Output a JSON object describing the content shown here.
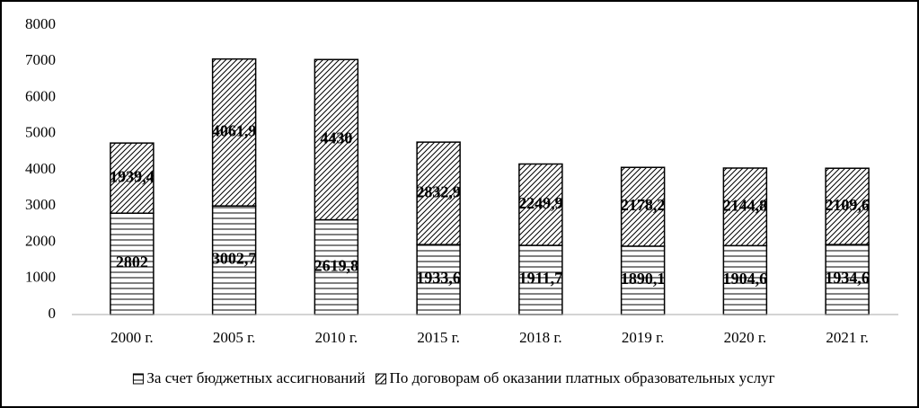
{
  "chart_data": {
    "type": "stacked-bar",
    "categories": [
      "2000 г.",
      "2005 г.",
      "2010 г.",
      "2015 г.",
      "2018 г.",
      "2019 г.",
      "2020 г.",
      "2021 г."
    ],
    "series": [
      {
        "name": "За счет бюджетных ассигнований",
        "color": "#000000",
        "hatch": "horizontal",
        "values": [
          2802,
          3002.7,
          2619.8,
          1933.6,
          1911.7,
          1890.1,
          1904.6,
          1934.6
        ],
        "value_labels": [
          "2802",
          "3002,7",
          "2619,8",
          "1933,6",
          "1911,7",
          "1890,1",
          "1904,6",
          "1934,6"
        ]
      },
      {
        "name": "По договорам об оказании платных образовательных услуг",
        "color": "#000000",
        "hatch": "diagonal",
        "values": [
          1939.4,
          4061.9,
          4430,
          2832.9,
          2249.9,
          2178.2,
          2144.8,
          2109.6
        ],
        "value_labels": [
          "1939,4",
          "4061,9",
          "4430",
          "2832,9",
          "2249,9",
          "2178,2",
          "2144,8",
          "2109,6"
        ]
      }
    ],
    "ylim": [
      0,
      8000
    ],
    "yticks": [
      0,
      1000,
      2000,
      3000,
      4000,
      5000,
      6000,
      7000,
      8000
    ],
    "grid": false,
    "legend": "bottom"
  }
}
